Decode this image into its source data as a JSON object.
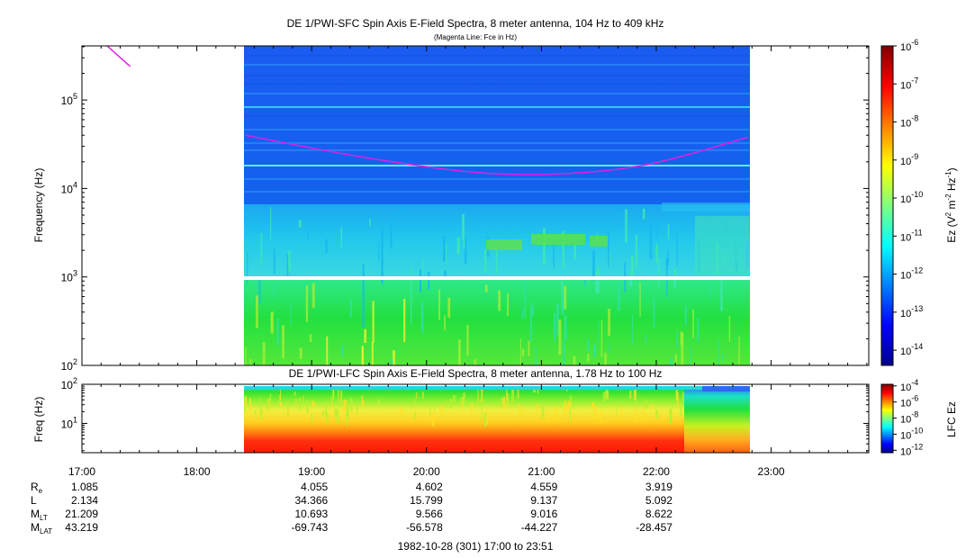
{
  "chart_data": [
    {
      "type": "heatmap",
      "title": "DE 1/PWI-SFC  Spin Axis E-Field Spectra, 8 meter antenna, 104 Hz to 409 kHz",
      "subtitle": "(Magenta Line: Fce in Hz)",
      "ylabel": "Frequency (Hz)",
      "yscale": "log",
      "ylim": [
        100,
        409000
      ],
      "y_ticks": [
        {
          "value": 100,
          "mant": "10",
          "exp": "2"
        },
        {
          "value": 1000,
          "mant": "10",
          "exp": "3"
        },
        {
          "value": 10000,
          "mant": "10",
          "exp": "4"
        },
        {
          "value": 100000,
          "mant": "10",
          "exp": "5"
        }
      ],
      "data_coverage_hours": [
        18.4,
        22.8
      ],
      "fce_line": {
        "label": "Fce",
        "color": "#e020e0",
        "segments": [
          {
            "t": [
              17.22,
              17.42
            ],
            "f": [
              409000,
              240000
            ]
          },
          {
            "t": [
              18.42,
              19.6,
              20.7,
              21.8,
              22.8
            ],
            "f": [
              40000,
              21000,
              14500,
              17500,
              38000
            ]
          }
        ]
      },
      "colorbar": {
        "label_main": "Ez (V",
        "label_parts": [
          "2",
          " m",
          "-2",
          " Hz",
          "-1",
          ")"
        ],
        "range_log10": [
          -14.4,
          -6
        ],
        "tick_exps": [
          "-6",
          "-7",
          "-8",
          "-9",
          "-10",
          "-11",
          "-12",
          "-13",
          "-14"
        ]
      }
    },
    {
      "type": "heatmap",
      "title": "DE 1/PWI-LFC  Spin Axis E-Field Spectra, 8 meter antenna, 1.78 Hz to 100 Hz",
      "ylabel": "Freq (Hz)",
      "yscale": "log",
      "ylim": [
        1.78,
        100
      ],
      "y_ticks": [
        {
          "value": 10,
          "mant": "10",
          "exp": "1"
        },
        {
          "value": 100,
          "mant": "10",
          "exp": "2"
        }
      ],
      "data_coverage_hours": [
        18.4,
        22.8
      ],
      "colorbar": {
        "label_main": "LFC Ez",
        "range_log10": [
          -12.3,
          -3.8
        ],
        "tick_exps": [
          "-4",
          "-6",
          "-8",
          "-10",
          "-12"
        ]
      }
    }
  ],
  "time_axis": {
    "range_hours": [
      17.0,
      23.85
    ],
    "ticks": [
      {
        "hour": 17,
        "label": "17:00"
      },
      {
        "hour": 18,
        "label": "18:00"
      },
      {
        "hour": 19,
        "label": "19:00"
      },
      {
        "hour": 20,
        "label": "20:00"
      },
      {
        "hour": 21,
        "label": "21:00"
      },
      {
        "hour": 22,
        "label": "22:00"
      },
      {
        "hour": 23,
        "label": "23:00"
      }
    ],
    "footer": "1982-10-28 (301) 17:00 to 23:51"
  },
  "ephemeris": [
    {
      "label": "R",
      "sub": "e",
      "values": [
        "1.085",
        "",
        "4.055",
        "4.602",
        "4.559",
        "3.919",
        ""
      ]
    },
    {
      "label": "L",
      "sub": "",
      "values": [
        "2.134",
        "",
        "34.366",
        "15.799",
        "9.137",
        "5.092",
        ""
      ]
    },
    {
      "label": "M",
      "sub": "LT",
      "values": [
        "21.209",
        "",
        "10.693",
        "9.566",
        "9.016",
        "8.622",
        ""
      ]
    },
    {
      "label": "M",
      "sub": "LAT",
      "values": [
        "43.219",
        "",
        "-69.743",
        "-56.578",
        "-44.227",
        "-28.457",
        ""
      ]
    }
  ]
}
